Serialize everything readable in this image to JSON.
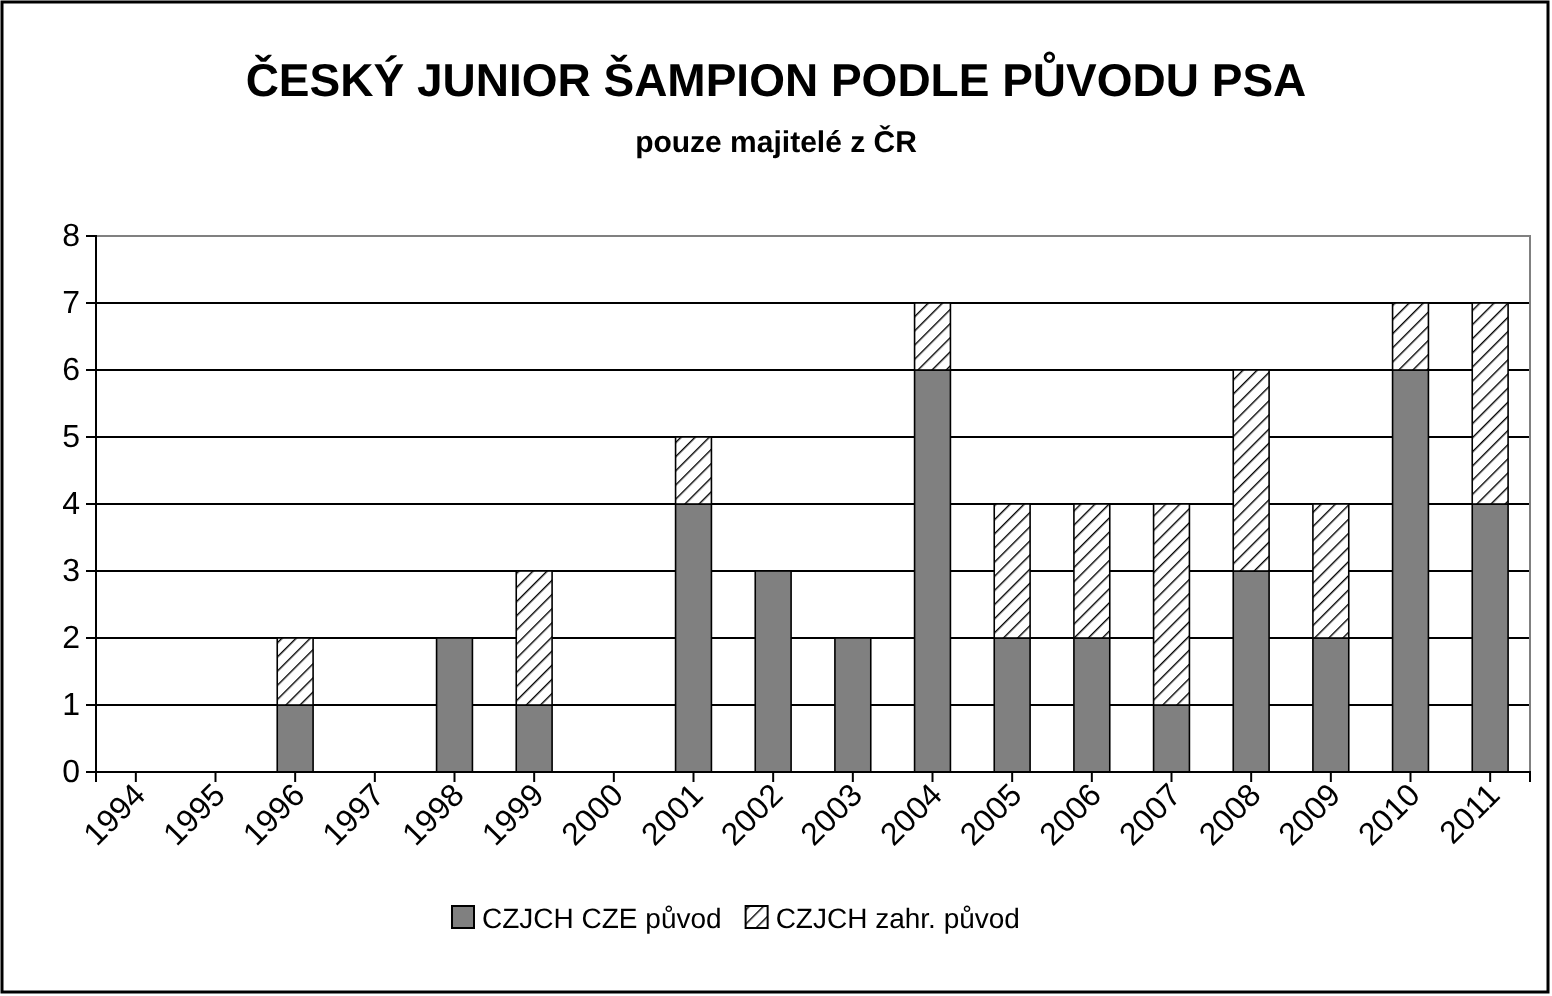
{
  "chart_data": {
    "type": "bar",
    "title": "ČESKÝ JUNIOR ŠAMPION PODLE PŮVODU PSA",
    "subtitle": "pouze majitelé z ČR",
    "categories": [
      "1994",
      "1995",
      "1996",
      "1997",
      "1998",
      "1999",
      "2000",
      "2001",
      "2002",
      "2003",
      "2004",
      "2005",
      "2006",
      "2007",
      "2008",
      "2009",
      "2010",
      "2011"
    ],
    "stacked": true,
    "series": [
      {
        "name": "CZJCH CZE původ",
        "color": "#808080",
        "values": [
          0,
          0,
          1,
          0,
          2,
          1,
          0,
          4,
          3,
          2,
          6,
          2,
          2,
          1,
          3,
          2,
          6,
          4
        ]
      },
      {
        "name": "CZJCH zahr. původ",
        "color": "#000000",
        "values": [
          0,
          0,
          1,
          0,
          0,
          2,
          0,
          1,
          0,
          0,
          1,
          2,
          2,
          3,
          3,
          2,
          1,
          3
        ]
      }
    ],
    "ylim": [
      0,
      8
    ],
    "yticks": [
      0,
      1,
      2,
      3,
      4,
      5,
      6,
      7,
      8
    ],
    "grid": "y",
    "legend": "bottom"
  }
}
